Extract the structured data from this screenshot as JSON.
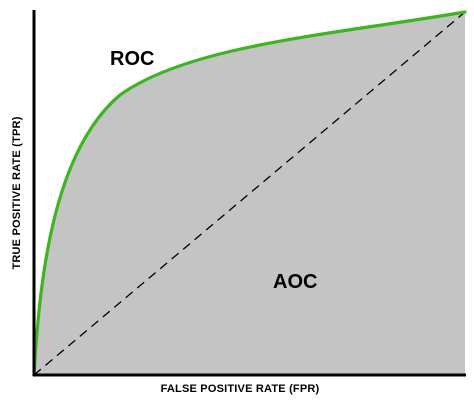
{
  "diagram": {
    "labels": {
      "curve": "ROC",
      "area": "AOC",
      "x_axis": "FALSE POSITIVE RATE (FPR)",
      "y_axis": "TRUE POSITIVE RATE (TPR)"
    },
    "colors": {
      "area_fill": "#c4c4c4",
      "curve": "#3cb521",
      "axes": "#000000",
      "diagonal": "#000000"
    },
    "diagonal_style": "dashed"
  }
}
